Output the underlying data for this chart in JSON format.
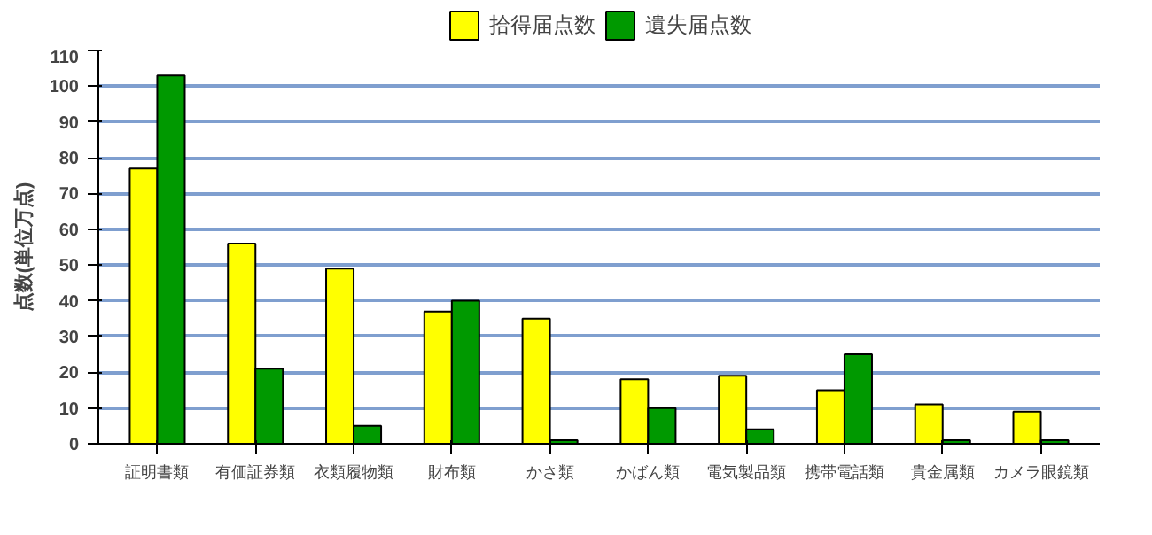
{
  "chart_data": {
    "type": "bar",
    "ylabel": "点数(単位万点)",
    "categories": [
      "証明書類",
      "有価証券類",
      "衣類履物類",
      "財布類",
      "かさ類",
      "かばん類",
      "電気製品類",
      "携帯電話類",
      "貴金属類",
      "カメラ眼鏡類"
    ],
    "series": [
      {
        "name": "拾得届点数",
        "color": "#ffff00",
        "values": [
          77,
          56,
          49,
          37,
          35,
          18,
          19,
          15,
          11,
          9
        ]
      },
      {
        "name": "遺失届点数",
        "color": "#009900",
        "values": [
          103,
          21,
          5,
          40,
          1,
          10,
          4,
          25,
          1,
          1
        ]
      }
    ],
    "ylim": [
      0,
      110
    ],
    "yticks": [
      0,
      10,
      20,
      30,
      40,
      50,
      60,
      70,
      80,
      90,
      100,
      110
    ],
    "grid": "y",
    "legend": "top"
  }
}
